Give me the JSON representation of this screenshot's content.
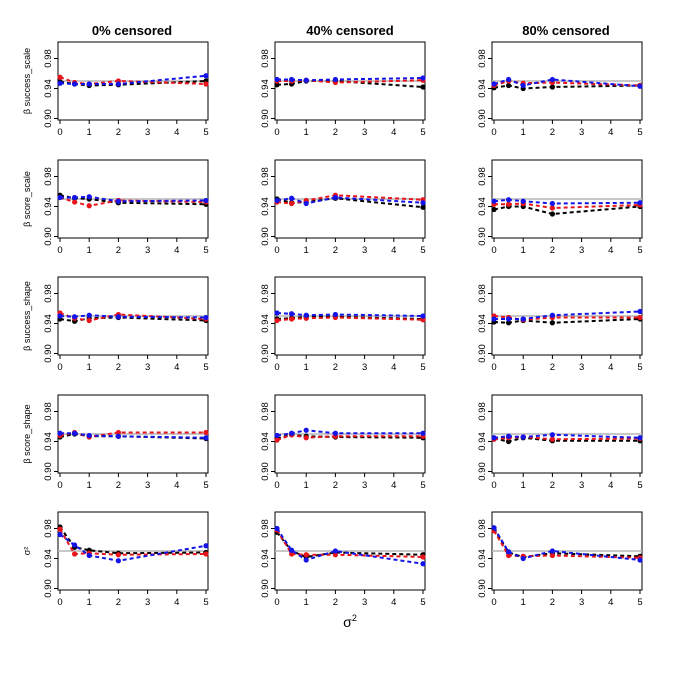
{
  "figure": {
    "x_axis_label": "σ",
    "x_axis_label_superscript": "2",
    "col_titles": [
      "0% censored",
      "40% censored",
      "80% censored"
    ],
    "row_labels": [
      "β success_scale",
      "β score_scale",
      "β success_shape",
      "β score_shape",
      "σ²"
    ],
    "series_names": [
      "black",
      "red",
      "blue"
    ],
    "series_colors": [
      "#000000",
      "#e8141b",
      "#1414e8"
    ],
    "reference_line_color": "#b5b5b5",
    "reference_value": 0.95
  },
  "chart_data": {
    "type": "line",
    "layout": "5 rows x 3 columns",
    "x": [
      0,
      0.5,
      1,
      2,
      5
    ],
    "x_ticks": [
      0,
      1,
      2,
      3,
      4,
      5
    ],
    "xlim": [
      0,
      5
    ],
    "y_ticks": [
      0.9,
      0.94,
      0.98
    ],
    "y_tick_labels": [
      "0.90",
      "0.94",
      "0.98"
    ],
    "ylim": [
      0.898,
      1.002
    ],
    "reference_line": 0.95,
    "panels": [
      {
        "row": 0,
        "col": 0,
        "series": [
          {
            "name": "black",
            "values": [
              0.949,
              0.946,
              0.944,
              0.945,
              0.95
            ]
          },
          {
            "name": "red",
            "values": [
              0.955,
              0.948,
              0.946,
              0.95,
              0.946
            ]
          },
          {
            "name": "blue",
            "values": [
              0.947,
              0.946,
              0.946,
              0.946,
              0.957
            ]
          }
        ]
      },
      {
        "row": 0,
        "col": 1,
        "series": [
          {
            "name": "black",
            "values": [
              0.945,
              0.946,
              0.95,
              0.95,
              0.942
            ]
          },
          {
            "name": "red",
            "values": [
              0.95,
              0.95,
              0.951,
              0.948,
              0.951
            ]
          },
          {
            "name": "blue",
            "values": [
              0.952,
              0.952,
              0.951,
              0.952,
              0.954
            ]
          }
        ]
      },
      {
        "row": 0,
        "col": 2,
        "series": [
          {
            "name": "black",
            "values": [
              0.941,
              0.944,
              0.94,
              0.942,
              0.944
            ]
          },
          {
            "name": "red",
            "values": [
              0.944,
              0.95,
              0.947,
              0.948,
              0.944
            ]
          },
          {
            "name": "blue",
            "values": [
              0.946,
              0.952,
              0.944,
              0.952,
              0.943
            ]
          }
        ]
      },
      {
        "row": 1,
        "col": 0,
        "series": [
          {
            "name": "black",
            "values": [
              0.955,
              0.951,
              0.95,
              0.945,
              0.943
            ]
          },
          {
            "name": "red",
            "values": [
              0.952,
              0.946,
              0.941,
              0.948,
              0.946
            ]
          },
          {
            "name": "blue",
            "values": [
              0.952,
              0.952,
              0.953,
              0.947,
              0.948
            ]
          }
        ]
      },
      {
        "row": 1,
        "col": 1,
        "series": [
          {
            "name": "black",
            "values": [
              0.95,
              0.945,
              0.946,
              0.951,
              0.939
            ]
          },
          {
            "name": "red",
            "values": [
              0.946,
              0.944,
              0.948,
              0.955,
              0.949
            ]
          },
          {
            "name": "blue",
            "values": [
              0.948,
              0.951,
              0.944,
              0.952,
              0.945
            ]
          }
        ]
      },
      {
        "row": 1,
        "col": 2,
        "series": [
          {
            "name": "black",
            "values": [
              0.936,
              0.94,
              0.94,
              0.93,
              0.94
            ]
          },
          {
            "name": "red",
            "values": [
              0.943,
              0.943,
              0.944,
              0.938,
              0.942
            ]
          },
          {
            "name": "blue",
            "values": [
              0.947,
              0.949,
              0.947,
              0.944,
              0.945
            ]
          }
        ]
      },
      {
        "row": 2,
        "col": 0,
        "series": [
          {
            "name": "black",
            "values": [
              0.946,
              0.943,
              0.947,
              0.948,
              0.944
            ]
          },
          {
            "name": "red",
            "values": [
              0.954,
              0.947,
              0.944,
              0.952,
              0.946
            ]
          },
          {
            "name": "blue",
            "values": [
              0.95,
              0.949,
              0.951,
              0.949,
              0.948
            ]
          }
        ]
      },
      {
        "row": 2,
        "col": 1,
        "series": [
          {
            "name": "black",
            "values": [
              0.946,
              0.947,
              0.949,
              0.949,
              0.946
            ]
          },
          {
            "name": "red",
            "values": [
              0.944,
              0.946,
              0.947,
              0.948,
              0.945
            ]
          },
          {
            "name": "blue",
            "values": [
              0.954,
              0.953,
              0.951,
              0.952,
              0.95
            ]
          }
        ]
      },
      {
        "row": 2,
        "col": 2,
        "series": [
          {
            "name": "black",
            "values": [
              0.942,
              0.941,
              0.944,
              0.941,
              0.946
            ]
          },
          {
            "name": "red",
            "values": [
              0.95,
              0.948,
              0.945,
              0.948,
              0.948
            ]
          },
          {
            "name": "blue",
            "values": [
              0.946,
              0.946,
              0.946,
              0.951,
              0.956
            ]
          }
        ]
      },
      {
        "row": 3,
        "col": 0,
        "series": [
          {
            "name": "black",
            "values": [
              0.946,
              0.95,
              0.947,
              0.947,
              0.944
            ]
          },
          {
            "name": "red",
            "values": [
              0.948,
              0.952,
              0.946,
              0.952,
              0.952
            ]
          },
          {
            "name": "blue",
            "values": [
              0.951,
              0.951,
              0.948,
              0.947,
              0.945
            ]
          }
        ]
      },
      {
        "row": 3,
        "col": 1,
        "series": [
          {
            "name": "black",
            "values": [
              0.944,
              0.949,
              0.947,
              0.946,
              0.945
            ]
          },
          {
            "name": "red",
            "values": [
              0.942,
              0.949,
              0.945,
              0.947,
              0.947
            ]
          },
          {
            "name": "blue",
            "values": [
              0.948,
              0.951,
              0.955,
              0.951,
              0.951
            ]
          }
        ]
      },
      {
        "row": 3,
        "col": 2,
        "series": [
          {
            "name": "black",
            "values": [
              0.944,
              0.94,
              0.945,
              0.941,
              0.941
            ]
          },
          {
            "name": "red",
            "values": [
              0.943,
              0.945,
              0.946,
              0.943,
              0.944
            ]
          },
          {
            "name": "blue",
            "values": [
              0.945,
              0.947,
              0.946,
              0.949,
              0.945
            ]
          }
        ]
      },
      {
        "row": 4,
        "col": 0,
        "series": [
          {
            "name": "black",
            "values": [
              0.982,
              0.955,
              0.951,
              0.947,
              0.948
            ]
          },
          {
            "name": "red",
            "values": [
              0.979,
              0.946,
              0.947,
              0.945,
              0.946
            ]
          },
          {
            "name": "blue",
            "values": [
              0.972,
              0.958,
              0.944,
              0.937,
              0.957
            ]
          }
        ]
      },
      {
        "row": 4,
        "col": 1,
        "series": [
          {
            "name": "black",
            "values": [
              0.975,
              0.95,
              0.942,
              0.948,
              0.945
            ]
          },
          {
            "name": "red",
            "values": [
              0.978,
              0.946,
              0.945,
              0.945,
              0.942
            ]
          },
          {
            "name": "blue",
            "values": [
              0.98,
              0.951,
              0.938,
              0.95,
              0.933
            ]
          }
        ]
      },
      {
        "row": 4,
        "col": 2,
        "series": [
          {
            "name": "black",
            "values": [
              0.979,
              0.948,
              0.942,
              0.947,
              0.943
            ]
          },
          {
            "name": "red",
            "values": [
              0.977,
              0.944,
              0.943,
              0.944,
              0.941
            ]
          },
          {
            "name": "blue",
            "values": [
              0.981,
              0.949,
              0.94,
              0.95,
              0.938
            ]
          }
        ]
      }
    ]
  }
}
